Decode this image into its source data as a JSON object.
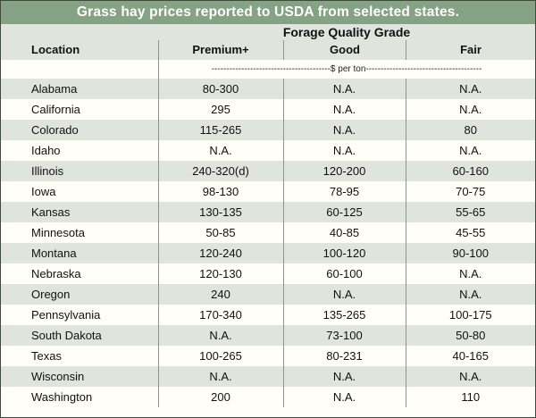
{
  "title": "Grass hay prices reported to USDA from selected states.",
  "header": {
    "group_label": "Forage Quality Grade",
    "location_label": "Location",
    "columns": [
      "Premium+",
      "Good",
      "Fair"
    ]
  },
  "units_text": "----------------------------------------$ per ton---------------------------------------",
  "rows": [
    {
      "location": "Alabama",
      "premium": "80-300",
      "good": "N.A.",
      "fair": "N.A."
    },
    {
      "location": "California",
      "premium": "295",
      "good": "N.A.",
      "fair": "N.A."
    },
    {
      "location": "Colorado",
      "premium": "115-265",
      "good": "N.A.",
      "fair": "80"
    },
    {
      "location": "Idaho",
      "premium": "N.A.",
      "good": "N.A.",
      "fair": "N.A."
    },
    {
      "location": "Illinois",
      "premium": "240-320(d)",
      "good": "120-200",
      "fair": "60-160"
    },
    {
      "location": "Iowa",
      "premium": "98-130",
      "good": "78-95",
      "fair": "70-75"
    },
    {
      "location": "Kansas",
      "premium": "130-135",
      "good": "60-125",
      "fair": "55-65"
    },
    {
      "location": "Minnesota",
      "premium": "50-85",
      "good": "40-85",
      "fair": "45-55"
    },
    {
      "location": "Montana",
      "premium": "120-240",
      "good": "100-120",
      "fair": "90-100"
    },
    {
      "location": "Nebraska",
      "premium": "120-130",
      "good": "60-100",
      "fair": "N.A."
    },
    {
      "location": "Oregon",
      "premium": "240",
      "good": "N.A.",
      "fair": "N.A."
    },
    {
      "location": "Pennsylvania",
      "premium": "170-340",
      "good": "135-265",
      "fair": "100-175"
    },
    {
      "location": "South Dakota",
      "premium": "N.A.",
      "good": "73-100",
      "fair": "50-80"
    },
    {
      "location": "Texas",
      "premium": "100-265",
      "good": "80-231",
      "fair": "40-165"
    },
    {
      "location": "Wisconsin",
      "premium": "N.A.",
      "good": "N.A.",
      "fair": "N.A."
    },
    {
      "location": "Washington",
      "premium": "200",
      "good": "N.A.",
      "fair": "110"
    }
  ],
  "colors": {
    "title_bar": "#85a284",
    "shaded_row": "#dfe5dd",
    "light_row": "#fffff7"
  }
}
